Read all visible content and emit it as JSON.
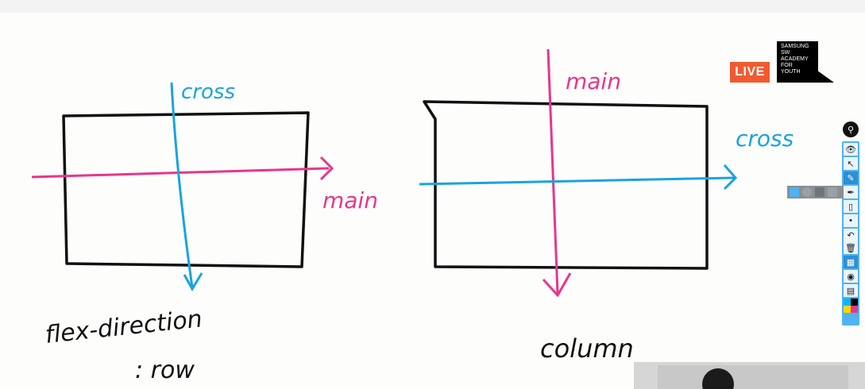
{
  "whiteboard": {
    "left_diagram": {
      "cross_label": "cross",
      "main_label": "main",
      "caption_line1": "flex-direction",
      "caption_line2": ": row"
    },
    "right_diagram": {
      "main_label": "main",
      "cross_label": "cross",
      "caption": "column"
    },
    "colors": {
      "pen_black": "#111111",
      "pen_pink": "#e8368a",
      "pen_blue": "#1aa3e0"
    }
  },
  "overlay": {
    "live_badge": "LIVE",
    "logo_text": "SAMSUNG\nSW\nACADEMY\nFOR\nYOUTH"
  },
  "toolbar": {
    "tools": [
      "pin-icon",
      "eye-icon",
      "cursor-icon",
      "highlighter-icon",
      "pen-icon",
      "eraser-icon",
      "dot-icon",
      "undo-icon",
      "trash-icon",
      "grid-icon",
      "camera-icon",
      "clipboard-icon",
      "color-swatches"
    ],
    "active_tool": "highlighter-icon"
  }
}
